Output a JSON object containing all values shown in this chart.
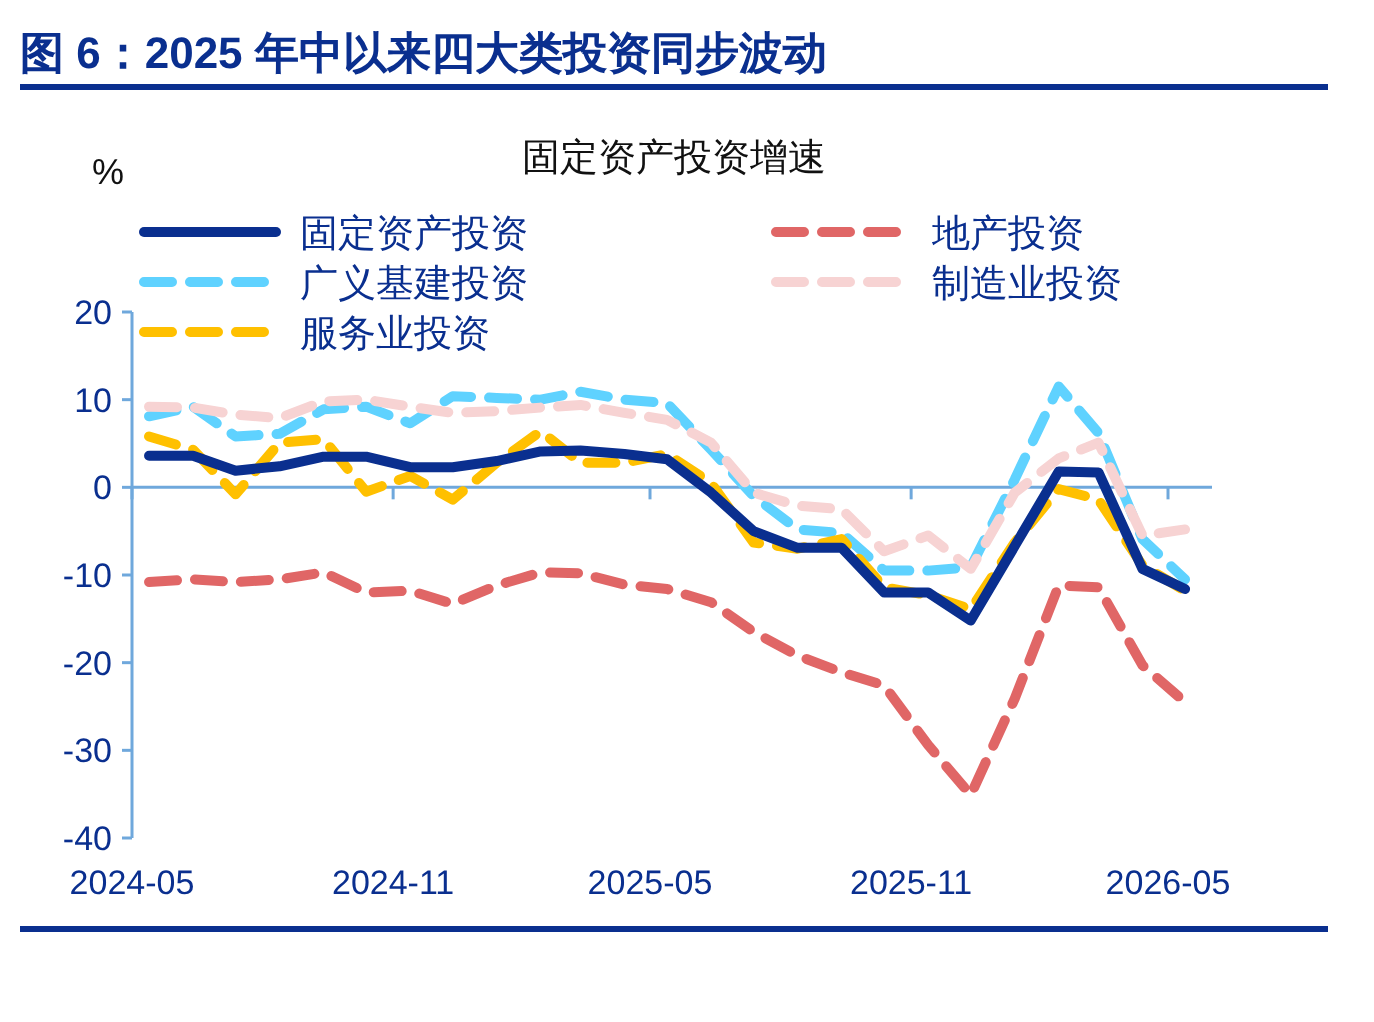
{
  "chart_data": {
    "type": "line",
    "title": "图 6：2025 年中以来四大类投资同步波动",
    "subtitle": "固定资产投资增速",
    "ylabel": "%",
    "x": [
      "2024-05-13",
      "2024-06-13",
      "2024-07-13",
      "2024-08-13",
      "2024-09-13",
      "2024-10-13",
      "2024-11-13",
      "2024-12-13",
      "2025-01-13",
      "2025-02-13",
      "2025-03-13",
      "2025-04-13",
      "2025-05-13",
      "2025-06-13",
      "2025-07-13",
      "2025-08-13",
      "2025-09-13",
      "2025-10-13",
      "2025-11-13",
      "2025-12-13",
      "2026-01-13",
      "2026-02-13",
      "2026-03-13",
      "2026-04-13",
      "2026-05-13"
    ],
    "xlim": [
      "2024-05",
      "2026-06"
    ],
    "xticks": [
      "2024-05",
      "2024-11",
      "2025-05",
      "2025-11",
      "2026-05"
    ],
    "ylim": [
      -40,
      20
    ],
    "yticks": [
      -40,
      -30,
      -20,
      -10,
      0,
      10,
      20
    ],
    "legend": "top",
    "grid": false,
    "ref_lines": [
      {
        "axis": "y",
        "value": 0,
        "color": "#6fa8dc",
        "line_style": "solid"
      }
    ],
    "series": [
      {
        "name": "固定资产投资",
        "color": "#0a2f8f",
        "line_style": "solid",
        "values": [
          3.6,
          3.6,
          1.9,
          2.4,
          3.5,
          3.5,
          2.3,
          2.3,
          3.0,
          4.1,
          4.2,
          3.8,
          3.2,
          -0.6,
          -5.0,
          -6.9,
          -6.9,
          -12.0,
          -12.0,
          -15.2,
          -6.7,
          1.8,
          1.7,
          -9.3,
          -11.6
        ]
      },
      {
        "name": "地产投资",
        "color": "#e06666",
        "line_style": "dashed",
        "values": [
          -10.8,
          -10.5,
          -10.8,
          -10.5,
          -9.7,
          -12.0,
          -11.8,
          -13.3,
          -11.2,
          -9.7,
          -9.8,
          -11.1,
          -11.6,
          -13.1,
          -16.5,
          -19.2,
          -21.1,
          -22.6,
          -29.4,
          -35.1,
          -24.1,
          -11.2,
          -11.4,
          -20.3,
          -24.5
        ]
      },
      {
        "name": "广义基建投资",
        "color": "#5fd2ff",
        "line_style": "dashed",
        "values": [
          8.1,
          9.2,
          5.8,
          6.1,
          8.9,
          9.2,
          7.3,
          10.4,
          10.2,
          10.0,
          10.9,
          10.0,
          9.6,
          4.3,
          -1.0,
          -4.8,
          -5.2,
          -9.5,
          -9.5,
          -9.1,
          0.9,
          11.5,
          6.2,
          -5.9,
          -10.5
        ]
      },
      {
        "name": "制造业投资",
        "color": "#f7d3d3",
        "line_style": "dashed",
        "values": [
          9.2,
          9.1,
          8.3,
          7.9,
          9.8,
          10.0,
          9.2,
          8.5,
          8.7,
          9.1,
          9.4,
          8.5,
          7.7,
          5.1,
          -0.6,
          -2.1,
          -2.5,
          -7.3,
          -5.5,
          -9.3,
          -0.6,
          3.3,
          5.1,
          -5.5,
          -4.8
        ]
      },
      {
        "name": "服务业投资",
        "color": "#ffc000",
        "line_style": "dashed",
        "values": [
          5.8,
          4.3,
          -0.8,
          5.1,
          5.5,
          -0.5,
          1.3,
          -1.4,
          2.8,
          6.4,
          2.8,
          2.8,
          3.8,
          0.5,
          -6.3,
          -7.0,
          -5.9,
          -11.4,
          -12.3,
          -13.9,
          -6.3,
          -0.2,
          -1.4,
          -8.9,
          -11.8
        ]
      }
    ]
  }
}
